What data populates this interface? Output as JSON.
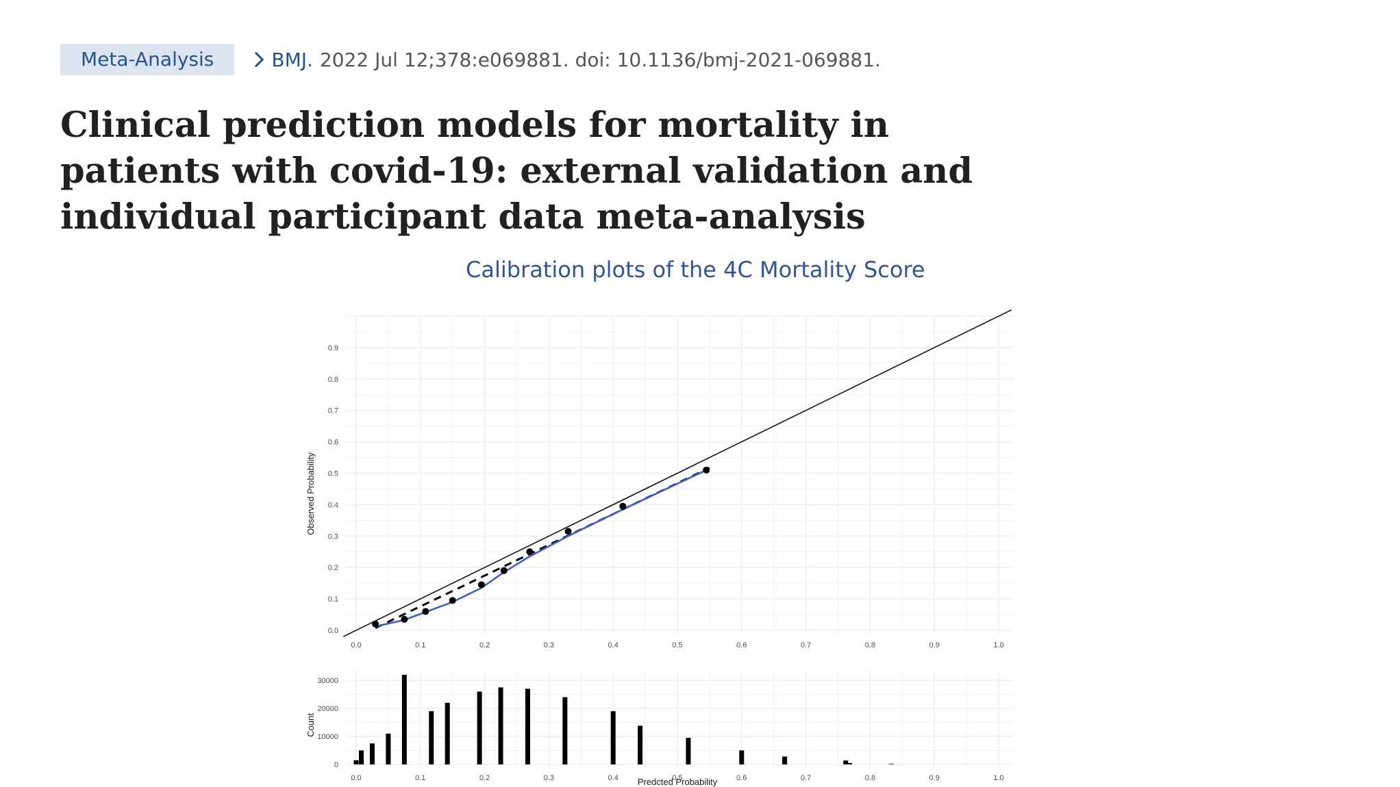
{
  "header": {
    "badge": "Meta-Analysis",
    "journal": "BMJ.",
    "citation": "2022 Jul 12;378:e069881. doi: 10.1136/bmj-2021-069881."
  },
  "article_title": "Clinical prediction models for mortality in patients with covid-19: external validation and individual participant data meta-analysis",
  "figure_caption": "Calibration plots of the 4C Mortality Score",
  "colors": {
    "accent": "#205493",
    "caption": "#2f5597",
    "loess_line": "#3a5fcd",
    "grid": "#ebebeb"
  },
  "chart_data": [
    {
      "type": "scatter",
      "xlabel": "",
      "ylabel": "Observed Probability",
      "xlim": [
        0,
        1.0
      ],
      "ylim": [
        0,
        1.0
      ],
      "x_ticks": [
        "0.0",
        "0.1",
        "0.2",
        "0.3",
        "0.4",
        "0.5",
        "0.6",
        "0.7",
        "0.8",
        "0.9",
        "1.0"
      ],
      "y_ticks": [
        "0.0",
        "0.1",
        "0.2",
        "0.3",
        "0.4",
        "0.5",
        "0.6",
        "0.7",
        "0.8",
        "0.9"
      ],
      "grid": true,
      "points": [
        [
          0.03,
          0.02
        ],
        [
          0.075,
          0.035
        ],
        [
          0.108,
          0.06
        ],
        [
          0.15,
          0.095
        ],
        [
          0.195,
          0.145
        ],
        [
          0.23,
          0.19
        ],
        [
          0.27,
          0.25
        ],
        [
          0.33,
          0.315
        ],
        [
          0.415,
          0.395
        ],
        [
          0.545,
          0.51
        ]
      ],
      "loess": [
        [
          0.03,
          0.012
        ],
        [
          0.075,
          0.033
        ],
        [
          0.108,
          0.058
        ],
        [
          0.15,
          0.09
        ],
        [
          0.195,
          0.135
        ],
        [
          0.23,
          0.185
        ],
        [
          0.27,
          0.235
        ],
        [
          0.33,
          0.3
        ],
        [
          0.415,
          0.385
        ],
        [
          0.545,
          0.51
        ]
      ],
      "fitted_line": {
        "intercept": -0.022,
        "slope": 0.98,
        "x_range": [
          0.03,
          0.55
        ]
      },
      "reference_line": {
        "intercept": 0,
        "slope": 1,
        "x_range": [
          -0.02,
          1.02
        ]
      }
    },
    {
      "type": "bar",
      "xlabel": "Predcted Probability",
      "ylabel": "Count",
      "xlim": [
        0,
        1.0
      ],
      "ylim": [
        0,
        32000
      ],
      "x_ticks": [
        "0.0",
        "0.1",
        "0.2",
        "0.3",
        "0.4",
        "0.5",
        "0.6",
        "0.7",
        "0.8",
        "0.9",
        "1.0"
      ],
      "y_ticks": [
        {
          "value": 0,
          "label": "0"
        },
        {
          "value": 10000,
          "label": "10000"
        },
        {
          "value": 20000,
          "label": "20000"
        },
        {
          "value": 30000,
          "label": "30000"
        }
      ],
      "grid": true,
      "x": [
        0.0,
        0.008,
        0.025,
        0.05,
        0.075,
        0.117,
        0.142,
        0.192,
        0.225,
        0.267,
        0.325,
        0.4,
        0.442,
        0.517,
        0.6,
        0.667,
        0.762,
        0.768,
        0.833
      ],
      "values": [
        1500,
        5000,
        7500,
        11000,
        32000,
        19000,
        22000,
        26000,
        27500,
        27000,
        24000,
        19000,
        13800,
        9500,
        5000,
        2800,
        1400,
        500,
        200
      ]
    }
  ]
}
